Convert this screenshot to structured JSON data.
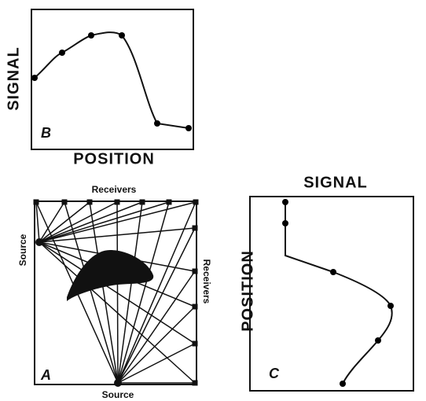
{
  "panel_b": {
    "label": "B",
    "y_axis": "SIGNAL",
    "x_axis": "POSITION"
  },
  "panel_a": {
    "label": "A",
    "top": "Receivers",
    "right": "Receivers",
    "left": "Source",
    "bottom": "Source"
  },
  "panel_c": {
    "label": "C",
    "title": "SIGNAL",
    "y_axis": "POSITION"
  }
}
